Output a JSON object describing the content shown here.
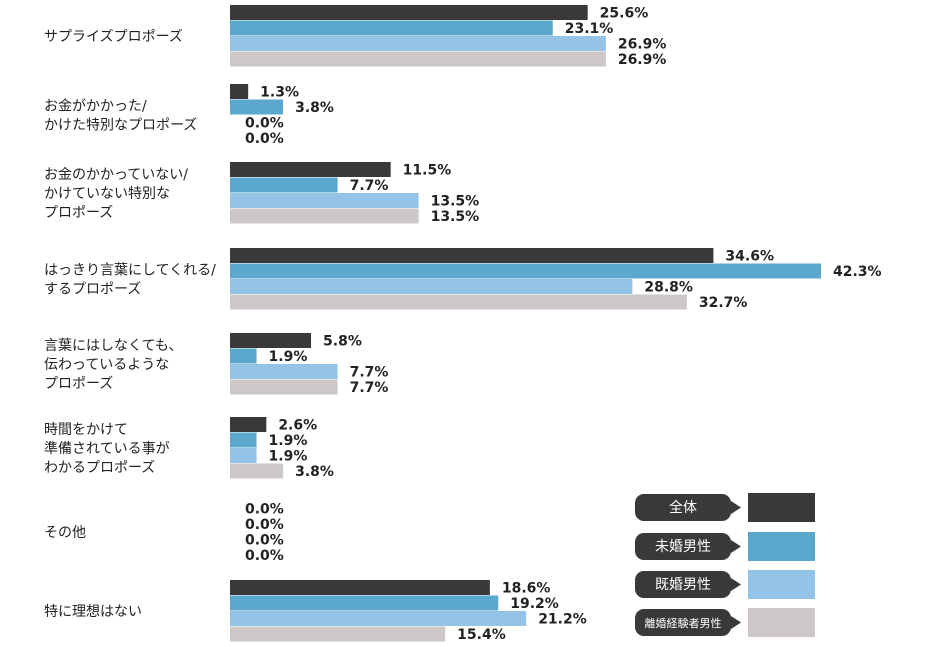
{
  "chart_data": {
    "type": "bar",
    "orientation": "horizontal",
    "categories": [
      [
        "サプライズプロポーズ"
      ],
      [
        "お金がかかった/",
        "かけた特別なプロポーズ"
      ],
      [
        "お金のかかっていない/",
        "かけていない特別な",
        "プロポーズ"
      ],
      [
        "はっきり言葉にしてくれる/",
        "するプロポーズ"
      ],
      [
        "言葉にはしなくても、",
        "伝わっているような",
        "プロポーズ"
      ],
      [
        "時間をかけて",
        "準備されている事が",
        "わかるプロポーズ"
      ],
      [
        "その他"
      ],
      [
        "特に理想はない"
      ]
    ],
    "series": [
      {
        "name": "全体",
        "color": "#3a3838",
        "values": [
          25.6,
          1.3,
          11.5,
          34.6,
          5.8,
          2.6,
          0.0,
          18.6
        ]
      },
      {
        "name": "未婚男性",
        "color": "#5ba8cc",
        "values": [
          23.1,
          3.8,
          7.7,
          42.3,
          1.9,
          1.9,
          0.0,
          19.2
        ]
      },
      {
        "name": "既婚男性",
        "color": "#93c3e6",
        "values": [
          26.9,
          0.0,
          13.5,
          28.8,
          7.7,
          1.9,
          0.0,
          21.2
        ]
      },
      {
        "name": "離婚経験者男性",
        "color": "#cdc7c7",
        "values": [
          26.9,
          0.0,
          13.5,
          32.7,
          7.7,
          3.8,
          0.0,
          15.4
        ]
      }
    ],
    "value_suffix": "%",
    "legend_position": "bottom-right"
  }
}
